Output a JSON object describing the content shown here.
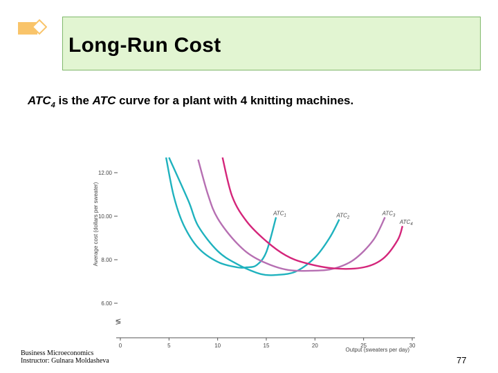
{
  "slide": {
    "title": "Long-Run Cost",
    "subtitle": {
      "part1": "ATC",
      "part1_sub": "4",
      "part2": " is the ",
      "part3": "ATC",
      "part4": " curve for a plant with 4 knitting machines."
    },
    "footer_line1": "Business Microeconomics",
    "footer_line2": "Instructor: Gulnara Moldasheva",
    "page_number": "77",
    "colors": {
      "title_bg": "#e2f5d2",
      "title_border": "#7fb86a",
      "bullet": "#f9c46a"
    }
  },
  "chart_data": {
    "type": "line",
    "xlabel": "Output (sweaters per day)",
    "ylabel": "Average cost (dollars per sweater)",
    "xlim": [
      0,
      30
    ],
    "ylim": [
      6,
      12
    ],
    "x_ticks": [
      "0",
      "5",
      "10",
      "15",
      "20",
      "25",
      "30"
    ],
    "y_ticks": [
      "6.00",
      "8.00",
      "10.00",
      "12.00"
    ],
    "axis_break_symbol": "≶",
    "series": [
      {
        "name": "ATC",
        "subscript": "1",
        "color": "#1fb2be",
        "x": [
          4.7,
          5.5,
          6.5,
          8,
          10,
          12,
          13,
          14,
          15,
          16
        ],
        "y": [
          12.7,
          10.9,
          9.6,
          8.55,
          7.9,
          7.65,
          7.65,
          7.75,
          8.35,
          9.95
        ]
      },
      {
        "name": "ATC",
        "subscript": "2",
        "color": "#1fb2be",
        "x": [
          5,
          7,
          8,
          10,
          12,
          14,
          15,
          16,
          18,
          20,
          21.5,
          22.5
        ],
        "y": [
          12.7,
          10.7,
          9.55,
          8.4,
          7.8,
          7.4,
          7.3,
          7.3,
          7.45,
          8.1,
          9.0,
          9.85
        ]
      },
      {
        "name": "ATC",
        "subscript": "3",
        "color": "#b66fb2",
        "x": [
          8,
          9,
          10,
          12,
          14,
          17,
          20,
          22,
          24,
          26,
          27.2
        ],
        "y": [
          12.6,
          11.0,
          9.9,
          8.75,
          8.05,
          7.55,
          7.5,
          7.6,
          8.0,
          8.9,
          9.95
        ]
      },
      {
        "name": "ATC",
        "subscript": "4",
        "color": "#d4257a",
        "x": [
          10.5,
          11.5,
          13,
          15,
          17,
          19,
          22,
          25,
          27,
          28.5,
          29
        ],
        "y": [
          12.7,
          10.9,
          9.75,
          8.85,
          8.2,
          7.85,
          7.6,
          7.65,
          8.05,
          8.9,
          9.55
        ]
      }
    ]
  }
}
